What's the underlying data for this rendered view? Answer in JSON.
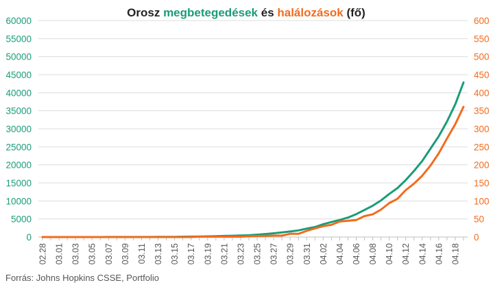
{
  "colors": {
    "cases": "#1a9c78",
    "deaths": "#f26b1d",
    "grid": "#dcdcdc",
    "axis": "#bfbfbf",
    "text": "#222222",
    "muted": "#555555"
  },
  "title": {
    "part1": "Orosz ",
    "part2": "megbetegedések",
    "part3": " és ",
    "part4": "halálozások",
    "part5": " (fő)"
  },
  "source": "Forrás: Johns Hopkins CSSE, Portfolio",
  "chart_data": {
    "type": "line",
    "title": "Orosz megbetegedések és halálozások (fő)",
    "x_tick_labels": [
      "02.28",
      "03.01",
      "03.03",
      "03.05",
      "03.07",
      "03.09",
      "03.11",
      "03.13",
      "03.15",
      "03.17",
      "03.19",
      "03.21",
      "03.23",
      "03.25",
      "03.27",
      "03.29",
      "03.31",
      "04.02",
      "04.04",
      "04.06",
      "04.08",
      "04.10",
      "04.12",
      "04.14",
      "04.16",
      "04.18"
    ],
    "x": [
      "02.28",
      "02.29",
      "03.01",
      "03.02",
      "03.03",
      "03.04",
      "03.05",
      "03.06",
      "03.07",
      "03.08",
      "03.09",
      "03.10",
      "03.11",
      "03.12",
      "03.13",
      "03.14",
      "03.15",
      "03.16",
      "03.17",
      "03.18",
      "03.19",
      "03.20",
      "03.21",
      "03.22",
      "03.23",
      "03.24",
      "03.25",
      "03.26",
      "03.27",
      "03.28",
      "03.29",
      "03.30",
      "03.31",
      "04.01",
      "04.02",
      "04.03",
      "04.04",
      "04.05",
      "04.06",
      "04.07",
      "04.08",
      "04.09",
      "04.10",
      "04.11",
      "04.12",
      "04.13",
      "04.14",
      "04.15",
      "04.16",
      "04.17",
      "04.18",
      "04.19"
    ],
    "y_left": {
      "min": 0,
      "max": 60000,
      "step": 5000,
      "ticks": [
        "0",
        "5000",
        "10000",
        "15000",
        "20000",
        "25000",
        "30000",
        "35000",
        "40000",
        "45000",
        "50000",
        "55000",
        "60000"
      ]
    },
    "y_right": {
      "min": 0,
      "max": 600,
      "step": 50,
      "ticks": [
        "0",
        "50",
        "100",
        "150",
        "200",
        "250",
        "300",
        "350",
        "400",
        "450",
        "500",
        "550",
        "600"
      ]
    },
    "series": [
      {
        "name": "megbetegedések",
        "axis": "left",
        "values": [
          0,
          0,
          2,
          3,
          3,
          3,
          4,
          4,
          10,
          10,
          17,
          17,
          20,
          28,
          34,
          45,
          63,
          90,
          114,
          147,
          199,
          253,
          306,
          367,
          438,
          495,
          658,
          840,
          1036,
          1264,
          1534,
          1836,
          2337,
          2777,
          3548,
          4149,
          4731,
          5389,
          6343,
          7497,
          8672,
          10131,
          11917,
          13584,
          15770,
          18328,
          21102,
          24490,
          27938,
          32008,
          36793,
          42853
        ]
      },
      {
        "name": "halálozások",
        "axis": "right",
        "values": [
          0,
          0,
          0,
          0,
          0,
          0,
          0,
          0,
          0,
          0,
          0,
          0,
          0,
          0,
          0,
          0,
          0,
          0,
          0,
          1,
          1,
          1,
          1,
          1,
          1,
          2,
          3,
          3,
          4,
          4,
          9,
          9,
          17,
          24,
          30,
          34,
          43,
          45,
          47,
          58,
          63,
          76,
          94,
          106,
          130,
          148,
          170,
          198,
          232,
          273,
          313,
          361
        ]
      }
    ],
    "grid": true,
    "legend": "none"
  }
}
